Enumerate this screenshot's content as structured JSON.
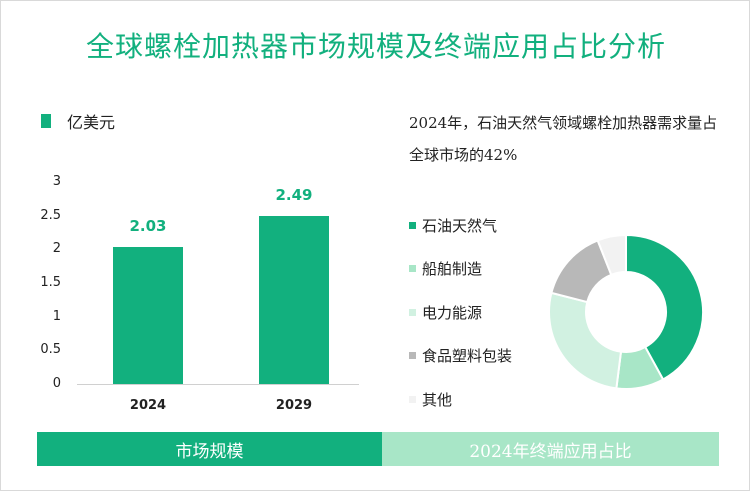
{
  "title": "全球螺栓加热器市场规模及终端应用占比分析",
  "colors": {
    "primary": "#12b07e",
    "light": "#a8e6c7",
    "pale": "#d1f1e1",
    "gray": "#b8b8b8",
    "faint": "#f2f2f2"
  },
  "chart_data": [
    {
      "type": "bar",
      "unit_label": "亿美元",
      "categories": [
        "2024",
        "2029"
      ],
      "values": [
        2.03,
        2.49
      ],
      "data_labels": [
        "2.03",
        "2.49"
      ],
      "ylim": [
        0,
        3
      ],
      "yticks": [
        "0",
        "0.5",
        "1",
        "1.5",
        "2",
        "2.5",
        "3"
      ],
      "grid": false,
      "legend": "top-left"
    },
    {
      "type": "pie",
      "donut": true,
      "annotation": "2024年，石油天然气领域螺栓加热器需求量占全球市场的42%",
      "labels": [
        "石油天然气",
        "船舶制造",
        "电力能源",
        "食品塑料包装",
        "其他"
      ],
      "values": [
        42,
        10,
        27,
        15,
        6
      ],
      "legend": "left"
    }
  ],
  "footer": {
    "left": "市场规模",
    "right": "2024年终端应用占比"
  }
}
